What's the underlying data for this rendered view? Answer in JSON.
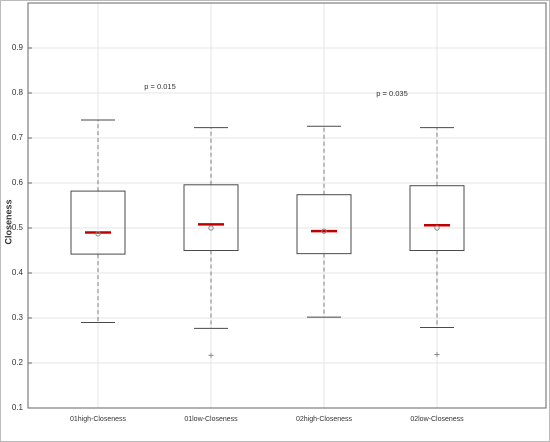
{
  "chart_data": {
    "type": "box",
    "y_label": "Closeness",
    "categories": [
      "01high-Closeness",
      "01low-Closeness",
      "02high-Closeness",
      "02low-Closeness"
    ],
    "boxes": [
      {
        "min": 0.29,
        "q1": 0.442,
        "median": 0.49,
        "q3": 0.582,
        "max": 0.74,
        "mean": 0.487,
        "outliers": []
      },
      {
        "min": 0.277,
        "q1": 0.45,
        "median": 0.508,
        "q3": 0.596,
        "max": 0.723,
        "mean": 0.5,
        "outliers": [
          0.217
        ]
      },
      {
        "min": 0.302,
        "q1": 0.443,
        "median": 0.493,
        "q3": 0.574,
        "max": 0.726,
        "mean": 0.493,
        "outliers": []
      },
      {
        "min": 0.279,
        "q1": 0.45,
        "median": 0.506,
        "q3": 0.594,
        "max": 0.723,
        "mean": 0.5,
        "outliers": [
          0.219
        ]
      }
    ],
    "annotations": [
      "p = 0.015",
      "p = 0.035"
    ],
    "box_color": "#4a4a4a",
    "whisker_color": "#7a7a7a",
    "median_color": "#c00000",
    "marker_color": "#888888",
    "ylim": [
      0.1,
      1.0
    ],
    "yticks": [
      0.1,
      0.2,
      0.3,
      0.4,
      0.5,
      0.6,
      0.7,
      0.8,
      0.9
    ],
    "grid": true
  }
}
